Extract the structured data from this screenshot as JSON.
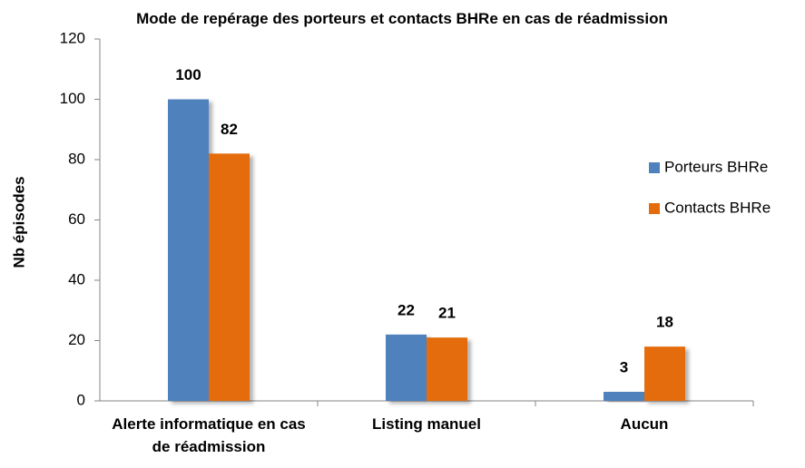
{
  "chart_data": {
    "type": "bar",
    "title": "Mode de repérage des porteurs et contacts BHRe en cas de réadmission",
    "y_label": "Nb épisodes",
    "categories": [
      "Alerte informatique en cas de réadmission",
      "Listing manuel",
      "Aucun"
    ],
    "series": [
      {
        "name": "Porteurs BHRe",
        "color": "#4f81bd",
        "values": [
          100,
          22,
          3
        ]
      },
      {
        "name": "Contacts BHRe",
        "color": "#e46c0a",
        "values": [
          82,
          21,
          18
        ]
      }
    ],
    "ylim": [
      0,
      120
    ],
    "yticks": [
      0,
      20,
      40,
      60,
      80,
      100,
      120
    ],
    "grid": false,
    "legend": "right",
    "data_labels": true
  }
}
